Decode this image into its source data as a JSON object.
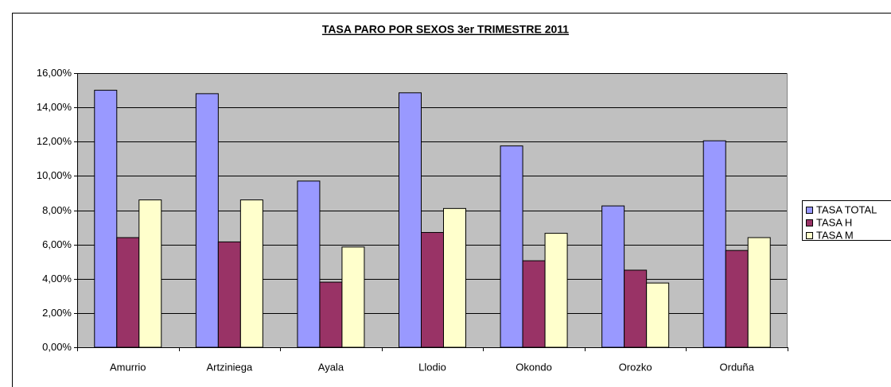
{
  "chart_data": {
    "type": "bar",
    "title": "TASA PARO POR SEXOS 3er TRIMESTRE 2011",
    "categories": [
      "Amurrio",
      "Artziniega",
      "Ayala",
      "Llodio",
      "Okondo",
      "Orozko",
      "Orduña"
    ],
    "series": [
      {
        "name": "TASA TOTAL",
        "color": "#9999ff",
        "values": [
          15.0,
          14.8,
          9.7,
          14.85,
          11.75,
          8.25,
          12.05
        ]
      },
      {
        "name": "TASA H",
        "color": "#993366",
        "values": [
          6.4,
          6.15,
          3.8,
          6.7,
          5.05,
          4.5,
          5.65
        ]
      },
      {
        "name": "TASA M",
        "color": "#ffffcc",
        "values": [
          8.6,
          8.6,
          5.85,
          8.1,
          6.65,
          3.75,
          6.4
        ]
      }
    ],
    "ylim": [
      0,
      16
    ],
    "yticks": [
      {
        "value": 0,
        "label": "0,00%"
      },
      {
        "value": 2,
        "label": "2,00%"
      },
      {
        "value": 4,
        "label": "4,00%"
      },
      {
        "value": 6,
        "label": "6,00%"
      },
      {
        "value": 8,
        "label": "8,00%"
      },
      {
        "value": 10,
        "label": "10,00%"
      },
      {
        "value": 12,
        "label": "12,00%"
      },
      {
        "value": 14,
        "label": "14,00%"
      },
      {
        "value": 16,
        "label": "16,00%"
      }
    ],
    "grid": true,
    "legend": "right"
  }
}
